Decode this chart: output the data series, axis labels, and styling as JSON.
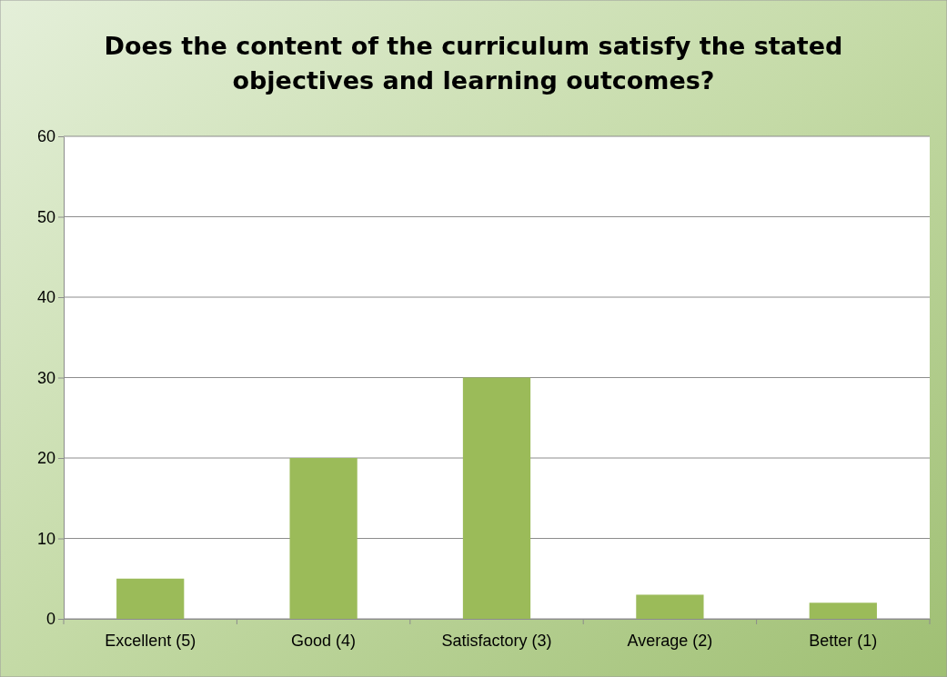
{
  "chart_data": {
    "type": "bar",
    "title": "Does the content of the curriculum satisfy the stated objectives and learning outcomes?",
    "categories": [
      "Excellent (5)",
      "Good (4)",
      "Satisfactory (3)",
      "Average (2)",
      "Better (1)"
    ],
    "values": [
      5,
      20,
      30,
      3,
      2
    ],
    "color": "#9bbb59",
    "ylim": [
      0,
      60
    ],
    "yticks": [
      0,
      10,
      20,
      30,
      40,
      50,
      60
    ],
    "grid": "y"
  }
}
